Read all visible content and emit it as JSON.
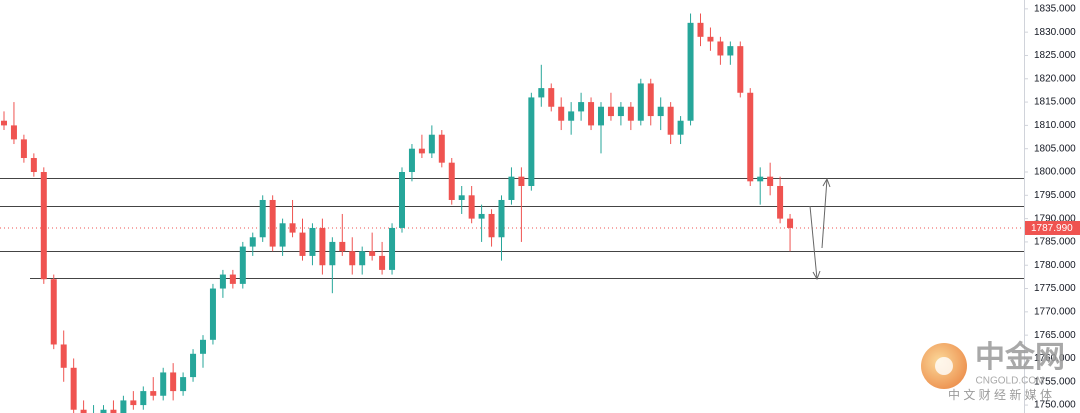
{
  "chart_data": {
    "type": "candlestick",
    "open": [
      1811,
      1810,
      1807,
      1803,
      1800,
      1777,
      1763,
      1758,
      1749,
      1747,
      1748,
      1749,
      1748,
      1751,
      1750,
      1753,
      1752,
      1757,
      1753,
      1756,
      1761,
      1764,
      1775,
      1778,
      1776,
      1784,
      1786,
      1794,
      1784,
      1789,
      1787,
      1782,
      1788,
      1780,
      1785,
      1783,
      1780,
      1783,
      1782,
      1779,
      1788,
      1800,
      1805,
      1804,
      1808,
      1802,
      1794,
      1795,
      1790,
      1791,
      1786,
      1794,
      1799,
      1797,
      1816,
      1818,
      1814,
      1811,
      1813,
      1815,
      1810,
      1814,
      1812,
      1814,
      1811,
      1819,
      1812,
      1814,
      1808,
      1811,
      1832,
      1829,
      1828,
      1825,
      1827,
      1817,
      1798,
      1799,
      1797,
      1790
    ],
    "high": [
      1813,
      1815,
      1808,
      1804,
      1801,
      1778,
      1766,
      1760,
      1751,
      1750,
      1750,
      1751,
      1752,
      1753,
      1754,
      1756,
      1758,
      1759,
      1757,
      1762,
      1765,
      1776,
      1779,
      1779,
      1785,
      1787,
      1795,
      1795,
      1790,
      1794,
      1790,
      1789,
      1790,
      1786,
      1791,
      1786,
      1784,
      1787,
      1785,
      1789,
      1801,
      1806,
      1808,
      1810,
      1809,
      1803,
      1797,
      1797,
      1793,
      1792,
      1795,
      1801,
      1801,
      1817,
      1823,
      1819,
      1816,
      1815,
      1817,
      1816,
      1815,
      1817,
      1815,
      1815,
      1820,
      1820,
      1816,
      1815,
      1812,
      1834,
      1834,
      1831,
      1829,
      1828,
      1828,
      1818,
      1801,
      1802,
      1799,
      1791
    ],
    "low": [
      1809,
      1806,
      1802,
      1799,
      1776,
      1762,
      1755,
      1748,
      1746,
      1745,
      1746,
      1747,
      1747,
      1749,
      1749,
      1751,
      1751,
      1751,
      1752,
      1755,
      1758,
      1763,
      1773,
      1775,
      1775,
      1782,
      1785,
      1783,
      1782,
      1786,
      1781,
      1780,
      1778,
      1774,
      1782,
      1778,
      1778,
      1781,
      1778,
      1778,
      1787,
      1798,
      1803,
      1803,
      1801,
      1793,
      1791,
      1789,
      1785,
      1784,
      1781,
      1793,
      1785,
      1796,
      1814,
      1813,
      1809,
      1808,
      1811,
      1809,
      1804,
      1811,
      1810,
      1809,
      1810,
      1810,
      1809,
      1806,
      1806,
      1810,
      1827,
      1826,
      1823,
      1823,
      1816,
      1797,
      1793,
      1795,
      1789,
      1783
    ],
    "close": [
      1810,
      1807,
      1803,
      1800,
      1777,
      1763,
      1758,
      1749,
      1747,
      1748,
      1749,
      1748,
      1751,
      1750,
      1753,
      1752,
      1757,
      1753,
      1756,
      1761,
      1764,
      1775,
      1778,
      1776,
      1784,
      1786,
      1794,
      1784,
      1789,
      1787,
      1782,
      1788,
      1780,
      1785,
      1783,
      1780,
      1783,
      1782,
      1779,
      1788,
      1800,
      1805,
      1804,
      1808,
      1802,
      1794,
      1795,
      1790,
      1791,
      1786,
      1794,
      1799,
      1797,
      1816,
      1818,
      1814,
      1811,
      1813,
      1815,
      1810,
      1814,
      1812,
      1814,
      1811,
      1819,
      1812,
      1814,
      1808,
      1811,
      1832,
      1829,
      1828,
      1825,
      1827,
      1817,
      1798,
      1799,
      1797,
      1790,
      1788
    ],
    "ylim": [
      1748.3,
      1836.9
    ],
    "yticks": [
      {
        "value": 1750,
        "label": "1750.000"
      },
      {
        "value": 1755,
        "label": "1755.000"
      },
      {
        "value": 1760,
        "label": "1760.000"
      },
      {
        "value": 1765,
        "label": "1765.000"
      },
      {
        "value": 1770,
        "label": "1770.000"
      },
      {
        "value": 1775,
        "label": "1775.000"
      },
      {
        "value": 1780,
        "label": "1780.000"
      },
      {
        "value": 1785,
        "label": "1785.000"
      },
      {
        "value": 1790,
        "label": "1790.000"
      },
      {
        "value": 1795,
        "label": "1795.000"
      },
      {
        "value": 1800,
        "label": "1800.000"
      },
      {
        "value": 1805,
        "label": "1805.000"
      },
      {
        "value": 1810,
        "label": "1810.000"
      },
      {
        "value": 1815,
        "label": "1815.000"
      },
      {
        "value": 1820,
        "label": "1820.000"
      },
      {
        "value": 1825,
        "label": "1825.000"
      },
      {
        "value": 1830,
        "label": "1830.000"
      },
      {
        "value": 1835,
        "label": "1835.000"
      }
    ],
    "last_price": {
      "value": 1787.99,
      "label": "1787.990"
    },
    "levels": [
      1798.7,
      1792.7,
      1783.1,
      1777.3
    ],
    "colors": {
      "up": "#26a69a",
      "down": "#ef5350",
      "level": "#444444"
    }
  },
  "watermark": {
    "brand": "中金网",
    "domain": "CNGOLD.COM",
    "tagline": "中 文 财 经 新 媒 体"
  }
}
